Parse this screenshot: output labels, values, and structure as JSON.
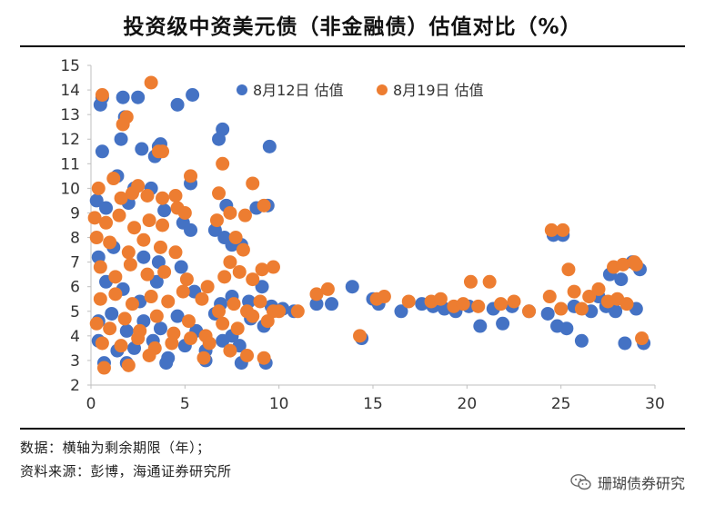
{
  "title": "投资级中资美元债（非金融债）估值对比（%）",
  "notes": {
    "line1": "数据：横轴为剩余期限（年）；",
    "line2": "资料来源：彭博，海通证券研究所"
  },
  "watermark": {
    "text": "珊瑚债券研究",
    "icon": "wechat-icon"
  },
  "colors": {
    "aug12": "#4472C4",
    "aug19": "#ED7D31",
    "axis": "#bfbfbf",
    "text": "#333333"
  },
  "chart_data": {
    "type": "scatter",
    "title": "投资级中资美元债（非金融债）估值对比（%）",
    "xlabel": "",
    "ylabel": "",
    "xlim": [
      0,
      30
    ],
    "ylim": [
      2,
      15
    ],
    "xticks": [
      0,
      5,
      10,
      15,
      20,
      25,
      30
    ],
    "yticks": [
      2,
      3,
      4,
      5,
      6,
      7,
      8,
      9,
      10,
      11,
      12,
      13,
      14,
      15
    ],
    "legend_position": "top",
    "series": [
      {
        "name": "8月12日 估值",
        "color": "#4472C4",
        "points": [
          [
            0.5,
            13.4
          ],
          [
            0.6,
            13.7
          ],
          [
            1.7,
            13.7
          ],
          [
            2.5,
            13.7
          ],
          [
            4.6,
            13.4
          ],
          [
            5.4,
            13.8
          ],
          [
            1.8,
            12.9
          ],
          [
            1.6,
            12.0
          ],
          [
            0.6,
            11.5
          ],
          [
            2.7,
            11.6
          ],
          [
            3.6,
            11.7
          ],
          [
            3.7,
            11.8
          ],
          [
            3.4,
            11.3
          ],
          [
            7.0,
            12.4
          ],
          [
            6.8,
            12.0
          ],
          [
            9.5,
            11.7
          ],
          [
            1.4,
            10.5
          ],
          [
            5.3,
            10.2
          ],
          [
            2.3,
            10.0
          ],
          [
            3.2,
            10.0
          ],
          [
            0.3,
            9.5
          ],
          [
            0.8,
            9.2
          ],
          [
            2.0,
            9.4
          ],
          [
            3.9,
            9.1
          ],
          [
            4.9,
            8.6
          ],
          [
            5.3,
            8.3
          ],
          [
            7.2,
            9.3
          ],
          [
            8.8,
            9.2
          ],
          [
            9.4,
            9.3
          ],
          [
            6.6,
            8.3
          ],
          [
            7.1,
            8.0
          ],
          [
            7.5,
            7.7
          ],
          [
            8.0,
            7.7
          ],
          [
            0.4,
            7.2
          ],
          [
            1.2,
            7.6
          ],
          [
            2.8,
            7.2
          ],
          [
            3.6,
            7.0
          ],
          [
            4.8,
            6.8
          ],
          [
            0.8,
            6.2
          ],
          [
            1.7,
            5.9
          ],
          [
            2.6,
            5.4
          ],
          [
            3.5,
            6.2
          ],
          [
            5.5,
            5.8
          ],
          [
            6.9,
            5.3
          ],
          [
            7.5,
            5.6
          ],
          [
            8.4,
            5.4
          ],
          [
            9.1,
            6.0
          ],
          [
            9.6,
            5.2
          ],
          [
            0.4,
            4.6
          ],
          [
            1.1,
            4.9
          ],
          [
            1.9,
            4.2
          ],
          [
            2.8,
            4.6
          ],
          [
            3.7,
            4.3
          ],
          [
            4.6,
            4.8
          ],
          [
            5.6,
            4.2
          ],
          [
            6.6,
            4.9
          ],
          [
            7.5,
            4.0
          ],
          [
            8.5,
            4.7
          ],
          [
            9.2,
            4.4
          ],
          [
            0.4,
            3.8
          ],
          [
            1.4,
            3.4
          ],
          [
            2.3,
            3.5
          ],
          [
            3.3,
            3.8
          ],
          [
            4.1,
            3.1
          ],
          [
            5.0,
            3.6
          ],
          [
            6.1,
            3.4
          ],
          [
            7.0,
            3.8
          ],
          [
            7.9,
            3.6
          ],
          [
            0.7,
            2.9
          ],
          [
            1.9,
            2.9
          ],
          [
            4.0,
            2.9
          ],
          [
            6.1,
            3.0
          ],
          [
            8.0,
            2.9
          ],
          [
            9.3,
            2.9
          ],
          [
            10.2,
            5.1
          ],
          [
            10.8,
            5.0
          ],
          [
            12.0,
            5.3
          ],
          [
            12.8,
            5.3
          ],
          [
            13.9,
            6.0
          ],
          [
            14.4,
            3.9
          ],
          [
            15.0,
            5.5
          ],
          [
            15.3,
            5.3
          ],
          [
            16.5,
            5.0
          ],
          [
            17.6,
            5.3
          ],
          [
            18.2,
            5.2
          ],
          [
            18.8,
            5.1
          ],
          [
            19.4,
            5.0
          ],
          [
            20.1,
            5.2
          ],
          [
            20.7,
            4.4
          ],
          [
            21.4,
            5.1
          ],
          [
            21.9,
            4.5
          ],
          [
            22.4,
            5.2
          ],
          [
            23.3,
            5.0
          ],
          [
            24.3,
            4.9
          ],
          [
            24.6,
            8.1
          ],
          [
            25.1,
            8.1
          ],
          [
            24.8,
            4.4
          ],
          [
            25.3,
            4.3
          ],
          [
            25.7,
            5.2
          ],
          [
            26.1,
            3.8
          ],
          [
            26.6,
            5.0
          ],
          [
            27.0,
            5.6
          ],
          [
            27.4,
            5.2
          ],
          [
            27.6,
            6.5
          ],
          [
            27.9,
            5.0
          ],
          [
            28.2,
            6.3
          ],
          [
            28.4,
            3.7
          ],
          [
            28.8,
            7.0
          ],
          [
            29.0,
            5.1
          ],
          [
            29.2,
            6.7
          ],
          [
            29.4,
            3.7
          ]
        ]
      },
      {
        "name": "8月19日 估值",
        "color": "#ED7D31",
        "points": [
          [
            0.6,
            13.8
          ],
          [
            1.9,
            12.9
          ],
          [
            1.7,
            12.6
          ],
          [
            3.2,
            14.3
          ],
          [
            3.8,
            11.5
          ],
          [
            3.6,
            11.5
          ],
          [
            7.0,
            11.0
          ],
          [
            0.4,
            10.0
          ],
          [
            1.2,
            10.4
          ],
          [
            1.6,
            9.6
          ],
          [
            2.2,
            9.8
          ],
          [
            2.5,
            10.1
          ],
          [
            3.0,
            9.7
          ],
          [
            3.8,
            9.6
          ],
          [
            4.5,
            9.7
          ],
          [
            5.3,
            10.5
          ],
          [
            0.2,
            8.8
          ],
          [
            0.8,
            8.6
          ],
          [
            1.5,
            8.9
          ],
          [
            2.3,
            8.4
          ],
          [
            3.1,
            8.7
          ],
          [
            3.8,
            8.5
          ],
          [
            4.6,
            9.2
          ],
          [
            5.0,
            9.0
          ],
          [
            6.8,
            9.8
          ],
          [
            7.4,
            9.0
          ],
          [
            8.2,
            8.9
          ],
          [
            8.6,
            10.2
          ],
          [
            9.2,
            9.3
          ],
          [
            6.7,
            8.7
          ],
          [
            7.7,
            8.0
          ],
          [
            0.3,
            8.0
          ],
          [
            1.0,
            7.8
          ],
          [
            2.0,
            7.4
          ],
          [
            2.8,
            7.9
          ],
          [
            3.7,
            7.6
          ],
          [
            4.5,
            7.4
          ],
          [
            7.4,
            7.0
          ],
          [
            8.1,
            7.5
          ],
          [
            0.5,
            6.8
          ],
          [
            1.3,
            6.4
          ],
          [
            2.1,
            6.9
          ],
          [
            3.0,
            6.5
          ],
          [
            3.9,
            6.6
          ],
          [
            5.1,
            6.3
          ],
          [
            6.2,
            6.0
          ],
          [
            7.1,
            6.4
          ],
          [
            7.9,
            6.6
          ],
          [
            8.6,
            6.3
          ],
          [
            9.1,
            6.7
          ],
          [
            9.7,
            6.8
          ],
          [
            0.5,
            5.5
          ],
          [
            1.3,
            5.7
          ],
          [
            2.2,
            5.3
          ],
          [
            3.2,
            5.6
          ],
          [
            4.1,
            5.4
          ],
          [
            4.9,
            5.8
          ],
          [
            5.9,
            5.5
          ],
          [
            6.8,
            5.0
          ],
          [
            7.6,
            5.3
          ],
          [
            8.3,
            5.0
          ],
          [
            9.0,
            5.4
          ],
          [
            9.7,
            5.0
          ],
          [
            0.3,
            4.5
          ],
          [
            1.0,
            4.3
          ],
          [
            1.8,
            4.7
          ],
          [
            2.6,
            4.2
          ],
          [
            3.5,
            4.8
          ],
          [
            4.4,
            4.1
          ],
          [
            5.2,
            4.6
          ],
          [
            6.1,
            4.0
          ],
          [
            7.0,
            4.5
          ],
          [
            7.8,
            4.3
          ],
          [
            8.6,
            4.8
          ],
          [
            9.4,
            4.6
          ],
          [
            0.6,
            3.7
          ],
          [
            1.6,
            3.6
          ],
          [
            2.5,
            3.9
          ],
          [
            3.4,
            3.5
          ],
          [
            4.3,
            3.7
          ],
          [
            5.3,
            3.9
          ],
          [
            6.3,
            3.7
          ],
          [
            7.4,
            3.4
          ],
          [
            0.7,
            2.7
          ],
          [
            2.0,
            2.8
          ],
          [
            3.1,
            3.2
          ],
          [
            6.0,
            3.1
          ],
          [
            8.3,
            3.2
          ],
          [
            9.2,
            3.1
          ],
          [
            10.0,
            5.0
          ],
          [
            11.0,
            5.0
          ],
          [
            12.0,
            5.7
          ],
          [
            12.6,
            5.9
          ],
          [
            14.3,
            4.0
          ],
          [
            15.2,
            5.5
          ],
          [
            15.6,
            5.6
          ],
          [
            16.9,
            5.4
          ],
          [
            18.1,
            5.4
          ],
          [
            18.6,
            5.5
          ],
          [
            19.3,
            5.2
          ],
          [
            19.8,
            5.3
          ],
          [
            20.2,
            6.2
          ],
          [
            20.6,
            5.2
          ],
          [
            21.2,
            6.2
          ],
          [
            21.8,
            5.3
          ],
          [
            22.5,
            5.4
          ],
          [
            23.3,
            5.0
          ],
          [
            24.5,
            8.3
          ],
          [
            25.1,
            8.3
          ],
          [
            24.4,
            5.6
          ],
          [
            25.0,
            5.1
          ],
          [
            25.4,
            6.7
          ],
          [
            25.7,
            5.8
          ],
          [
            26.1,
            5.1
          ],
          [
            26.5,
            5.6
          ],
          [
            27.0,
            5.9
          ],
          [
            27.5,
            5.4
          ],
          [
            27.8,
            6.8
          ],
          [
            28.0,
            5.5
          ],
          [
            28.3,
            6.9
          ],
          [
            28.5,
            5.3
          ],
          [
            28.9,
            7.0
          ],
          [
            29.0,
            6.9
          ],
          [
            29.3,
            3.9
          ]
        ]
      }
    ]
  }
}
